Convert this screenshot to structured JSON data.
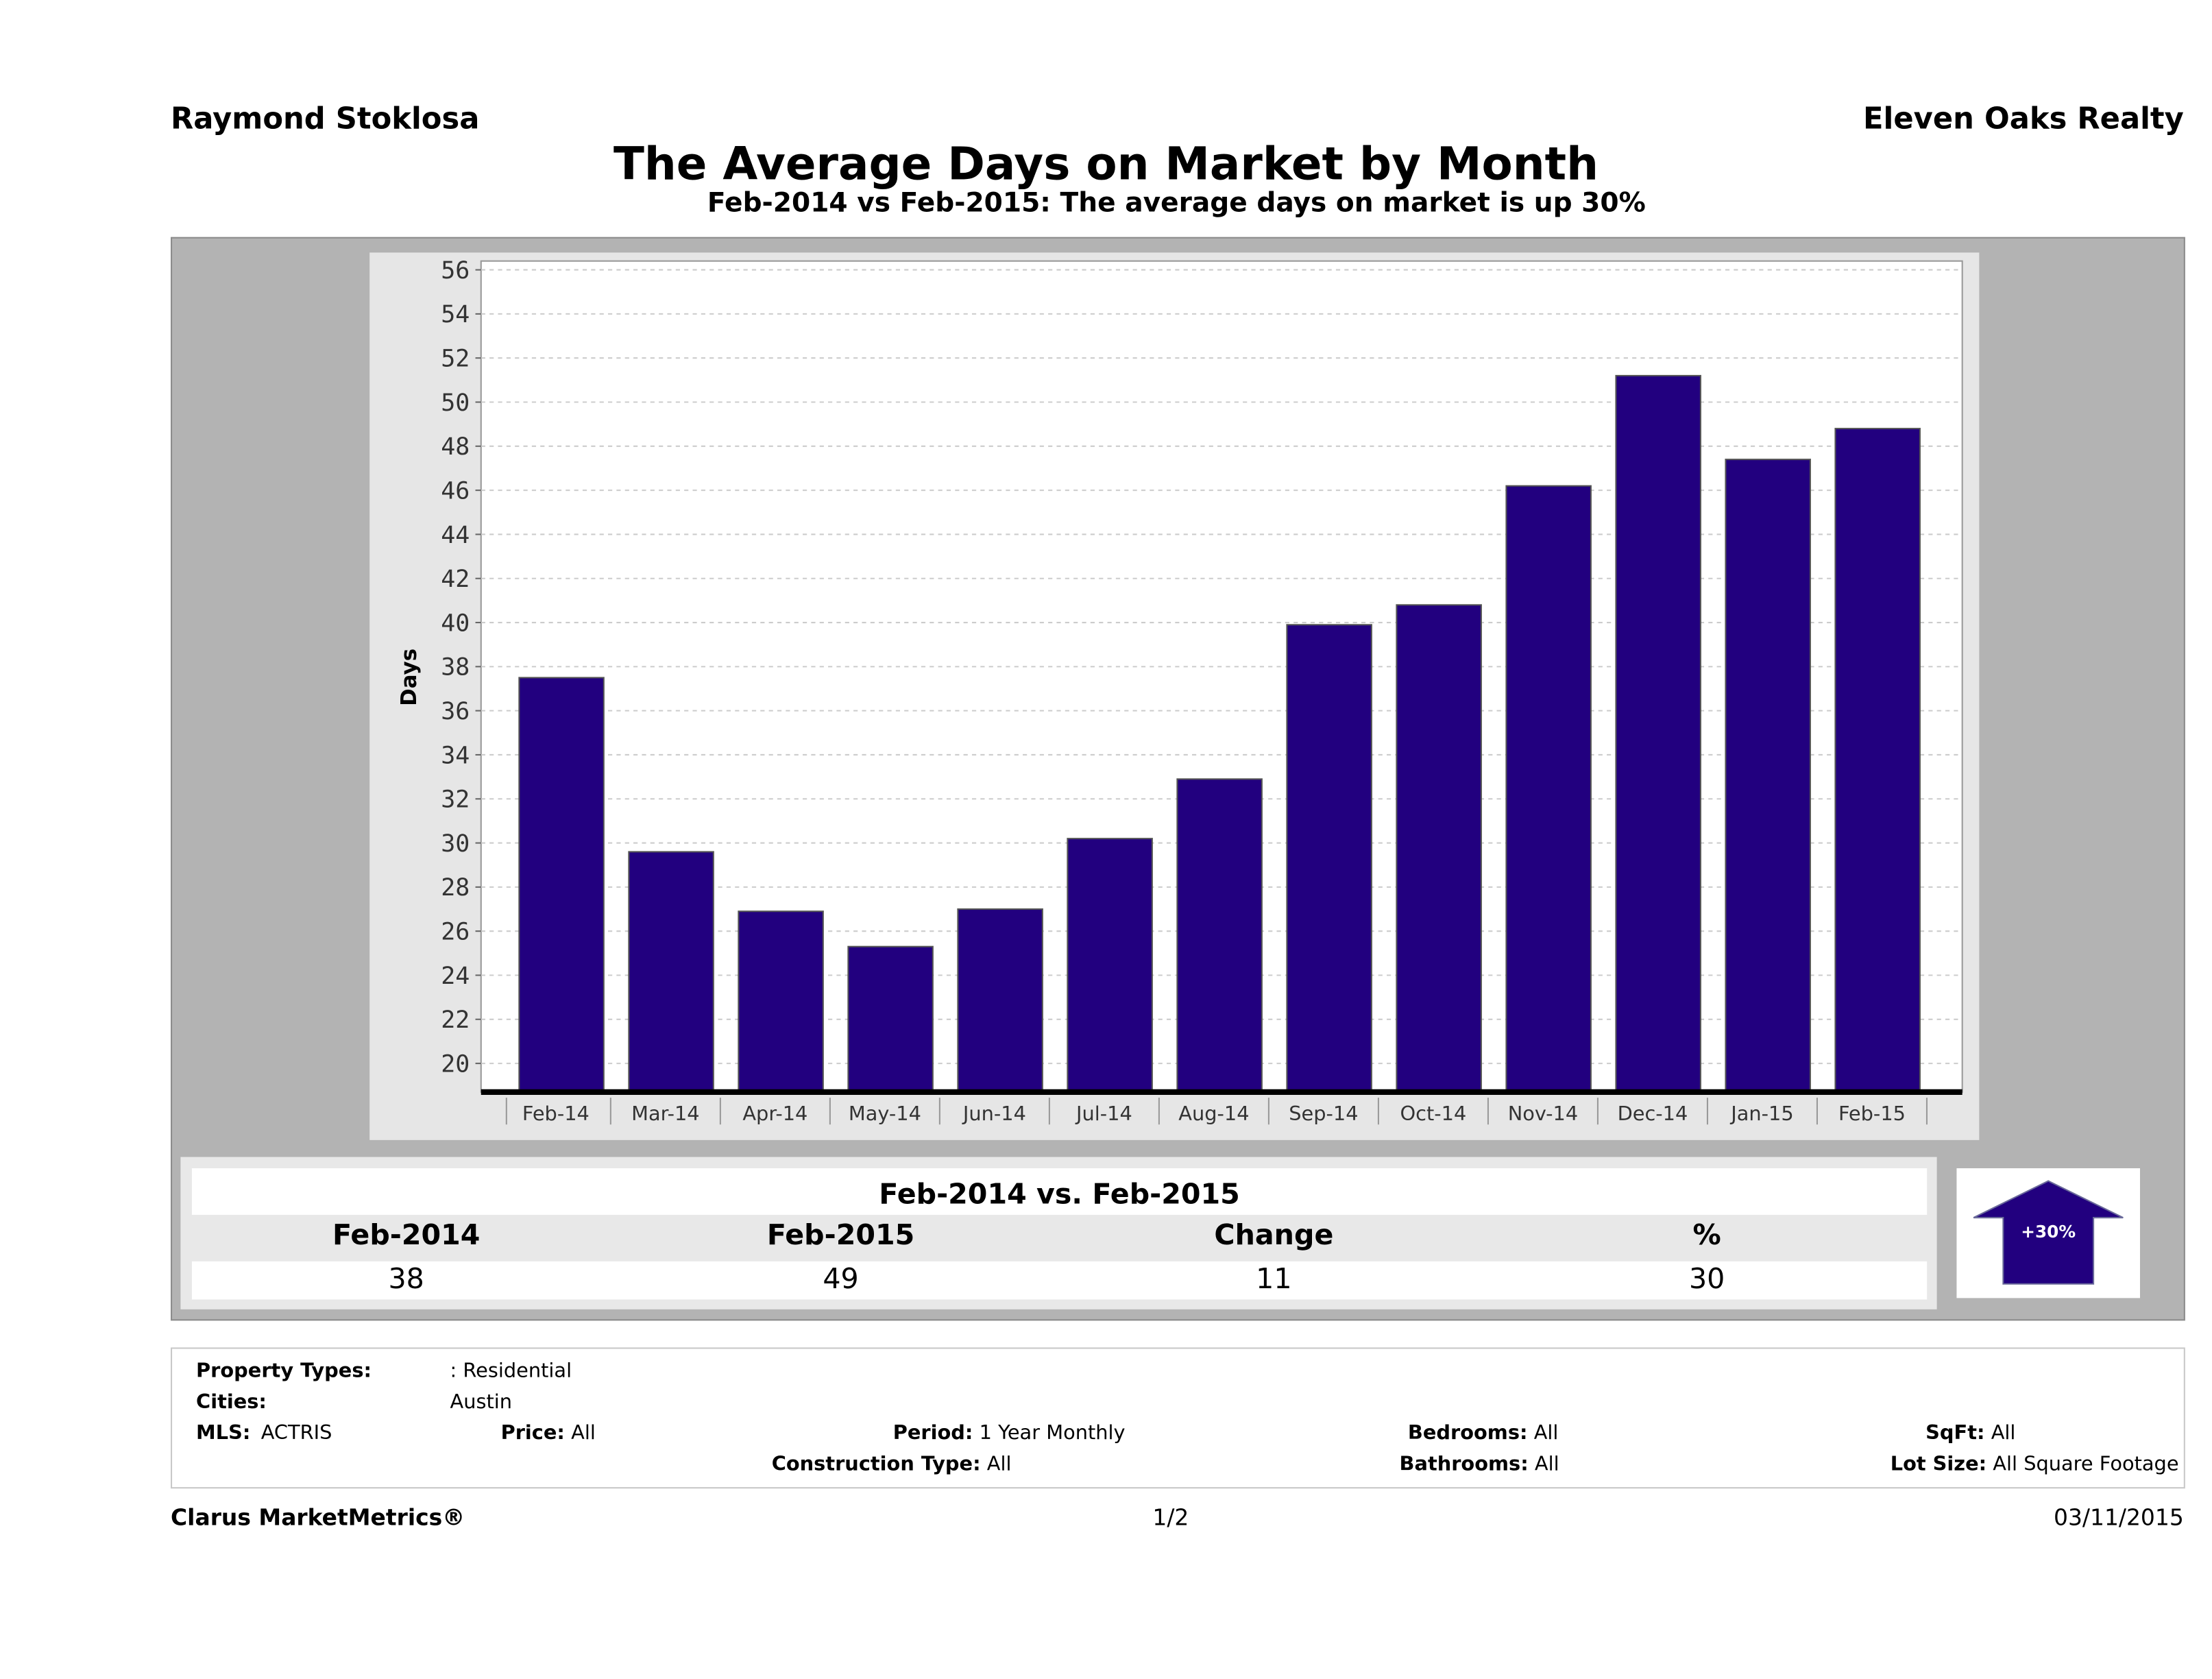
{
  "header": {
    "agent": "Raymond Stoklosa",
    "company": "Eleven Oaks Realty"
  },
  "chart_data": {
    "type": "bar",
    "title": "The Average Days on Market by Month",
    "subtitle": "Feb-2014 vs Feb-2015: The average days on market is up 30%",
    "ylabel": "Days",
    "xlabel": "",
    "categories": [
      "Feb-14",
      "Mar-14",
      "Apr-14",
      "May-14",
      "Jun-14",
      "Jul-14",
      "Aug-14",
      "Sep-14",
      "Oct-14",
      "Nov-14",
      "Dec-14",
      "Jan-15",
      "Feb-15"
    ],
    "values": [
      37.5,
      29.6,
      26.9,
      25.3,
      27.0,
      30.2,
      32.9,
      39.9,
      40.8,
      46.2,
      51.2,
      47.4,
      48.8
    ],
    "yticks": [
      20,
      22,
      24,
      26,
      28,
      30,
      32,
      34,
      36,
      38,
      40,
      42,
      44,
      46,
      48,
      50,
      52,
      54,
      56
    ],
    "ylim": [
      18.7,
      56.4
    ],
    "grid": true,
    "bar_color": "#22007f"
  },
  "comparison": {
    "title": "Feb-2014 vs. Feb-2015",
    "headers": [
      "Feb-2014",
      "Feb-2015",
      "Change",
      "%"
    ],
    "values": [
      "38",
      "49",
      "11",
      "30"
    ],
    "badge": "+30%",
    "direction": "up"
  },
  "filters": {
    "property_types_label": "Property Types:",
    "property_types_value": ": Residential",
    "cities_label": "Cities:",
    "cities_value": "Austin",
    "mls_label": "MLS:",
    "mls_value": "ACTRIS",
    "price_label": "Price:",
    "price_value": "All",
    "period_label": "Period:",
    "period_value": "1 Year Monthly",
    "construction_label": "Construction Type:",
    "construction_value": "All",
    "bedrooms_label": "Bedrooms:",
    "bedrooms_value": "All",
    "bathrooms_label": "Bathrooms:",
    "bathrooms_value": "All",
    "sqft_label": "SqFt:",
    "sqft_value": "All",
    "lotsize_label": "Lot Size:",
    "lotsize_value": "All Square Footage"
  },
  "footer": {
    "brand": "Clarus MarketMetrics®",
    "page": "1/2",
    "date": "03/11/2015"
  }
}
